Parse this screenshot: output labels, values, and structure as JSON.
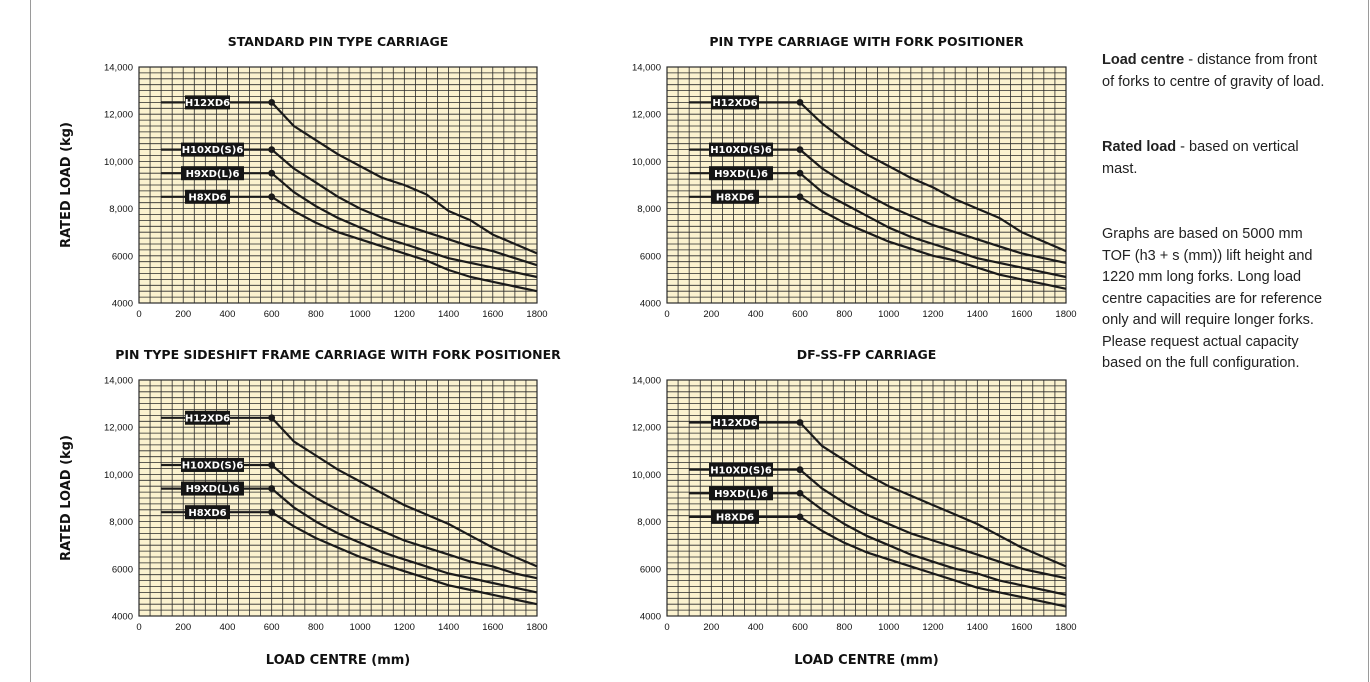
{
  "notes": {
    "load_centre_term": "Load centre",
    "load_centre_text": " - distance from front of forks to centre of gravity of load.",
    "rated_load_term": "Rated load",
    "rated_load_text": " - based on vertical mast.",
    "graphs_text": "Graphs are based on 5000 mm TOF (h3 + s (mm)) lift height and 1220 mm long forks. Long load centre capacities are for reference only and will require longer forks. Please request actual capacity based on the full configuration."
  },
  "colors": {
    "plot_background": "#fbf2cf",
    "grid": "#2a2a2a",
    "curve": "#1a1a1a",
    "label_box": "#151515"
  },
  "chart_data": [
    {
      "type": "line",
      "title": "STANDARD PIN TYPE CARRIAGE",
      "xlabel": "",
      "ylabel": "RATED LOAD (kg)",
      "xlim": [
        0,
        1800
      ],
      "ylim": [
        4000,
        14000
      ],
      "x_ticks": [
        "0",
        "200",
        "400",
        "600",
        "800",
        "1000",
        "1200",
        "1400",
        "1600",
        "1800"
      ],
      "y_ticks": [
        "4000",
        "6000",
        "8,000",
        "10,000",
        "12,000",
        "14,000"
      ],
      "grid": true,
      "series": [
        {
          "name": "H12XD6",
          "x": [
            100,
            600,
            700,
            800,
            900,
            1000,
            1100,
            1200,
            1300,
            1400,
            1500,
            1600,
            1700,
            1800
          ],
          "y": [
            12500,
            12500,
            11500,
            10900,
            10300,
            9800,
            9300,
            9000,
            8600,
            7900,
            7500,
            6900,
            6500,
            6100
          ]
        },
        {
          "name": "H10XD(S)6",
          "x": [
            100,
            600,
            700,
            800,
            900,
            1000,
            1100,
            1200,
            1300,
            1400,
            1500,
            1600,
            1700,
            1800
          ],
          "y": [
            10500,
            10500,
            9700,
            9100,
            8500,
            8000,
            7600,
            7300,
            7000,
            6700,
            6400,
            6200,
            5900,
            5600
          ]
        },
        {
          "name": "H9XD(L)6",
          "x": [
            100,
            600,
            700,
            800,
            900,
            1000,
            1100,
            1200,
            1300,
            1400,
            1500,
            1600,
            1700,
            1800
          ],
          "y": [
            9500,
            9500,
            8700,
            8100,
            7600,
            7200,
            6800,
            6500,
            6200,
            5900,
            5700,
            5500,
            5300,
            5100
          ]
        },
        {
          "name": "H8XD6",
          "x": [
            100,
            600,
            700,
            800,
            900,
            1000,
            1100,
            1200,
            1300,
            1400,
            1500,
            1600,
            1700,
            1800
          ],
          "y": [
            8500,
            8500,
            7900,
            7400,
            7000,
            6700,
            6400,
            6100,
            5800,
            5400,
            5100,
            4900,
            4700,
            4500
          ]
        }
      ]
    },
    {
      "type": "line",
      "title": "PIN TYPE CARRIAGE WITH FORK POSITIONER",
      "xlabel": "",
      "ylabel": "",
      "xlim": [
        0,
        1800
      ],
      "ylim": [
        4000,
        14000
      ],
      "x_ticks": [
        "0",
        "200",
        "400",
        "600",
        "800",
        "1000",
        "1200",
        "1400",
        "1600",
        "1800"
      ],
      "y_ticks": [
        "4000",
        "6000",
        "8,000",
        "10,000",
        "12,000",
        "14,000"
      ],
      "grid": true,
      "series": [
        {
          "name": "H12XD6",
          "x": [
            100,
            600,
            700,
            800,
            900,
            1000,
            1100,
            1200,
            1300,
            1400,
            1500,
            1600,
            1700,
            1800
          ],
          "y": [
            12500,
            12500,
            11600,
            10900,
            10300,
            9800,
            9300,
            8900,
            8400,
            8000,
            7600,
            7000,
            6600,
            6200
          ]
        },
        {
          "name": "H10XD(S)6",
          "x": [
            100,
            600,
            700,
            800,
            900,
            1000,
            1100,
            1200,
            1300,
            1400,
            1500,
            1600,
            1700,
            1800
          ],
          "y": [
            10500,
            10500,
            9700,
            9100,
            8600,
            8100,
            7700,
            7300,
            7000,
            6700,
            6400,
            6100,
            5900,
            5700
          ]
        },
        {
          "name": "H9XD(L)6",
          "x": [
            100,
            600,
            700,
            800,
            900,
            1000,
            1100,
            1200,
            1300,
            1400,
            1500,
            1600,
            1700,
            1800
          ],
          "y": [
            9500,
            9500,
            8700,
            8200,
            7700,
            7200,
            6800,
            6500,
            6200,
            5900,
            5700,
            5500,
            5300,
            5100
          ]
        },
        {
          "name": "H8XD6",
          "x": [
            100,
            600,
            700,
            800,
            900,
            1000,
            1100,
            1200,
            1300,
            1400,
            1500,
            1600,
            1700,
            1800
          ],
          "y": [
            8500,
            8500,
            7900,
            7400,
            7000,
            6600,
            6300,
            6000,
            5800,
            5500,
            5200,
            5000,
            4800,
            4600
          ]
        }
      ]
    },
    {
      "type": "line",
      "title": "PIN TYPE SIDESHIFT FRAME CARRIAGE WITH FORK POSITIONER",
      "xlabel": "LOAD CENTRE (mm)",
      "ylabel": "RATED LOAD (kg)",
      "xlim": [
        0,
        1800
      ],
      "ylim": [
        4000,
        14000
      ],
      "x_ticks": [
        "0",
        "200",
        "400",
        "600",
        "800",
        "1000",
        "1200",
        "1400",
        "1600",
        "1800"
      ],
      "y_ticks": [
        "4000",
        "6000",
        "8,000",
        "10,000",
        "12,000",
        "14,000"
      ],
      "grid": true,
      "series": [
        {
          "name": "H12XD6",
          "x": [
            100,
            600,
            700,
            800,
            900,
            1000,
            1100,
            1200,
            1300,
            1400,
            1500,
            1600,
            1700,
            1800
          ],
          "y": [
            12400,
            12400,
            11400,
            10800,
            10200,
            9700,
            9200,
            8700,
            8300,
            7900,
            7400,
            6900,
            6500,
            6100
          ]
        },
        {
          "name": "H10XD(S)6",
          "x": [
            100,
            600,
            700,
            800,
            900,
            1000,
            1100,
            1200,
            1300,
            1400,
            1500,
            1600,
            1700,
            1800
          ],
          "y": [
            10400,
            10400,
            9600,
            9000,
            8500,
            8000,
            7600,
            7200,
            6900,
            6600,
            6300,
            6100,
            5800,
            5600
          ]
        },
        {
          "name": "H9XD(L)6",
          "x": [
            100,
            600,
            700,
            800,
            900,
            1000,
            1100,
            1200,
            1300,
            1400,
            1500,
            1600,
            1700,
            1800
          ],
          "y": [
            9400,
            9400,
            8600,
            8000,
            7500,
            7100,
            6700,
            6400,
            6100,
            5800,
            5600,
            5400,
            5200,
            5000
          ]
        },
        {
          "name": "H8XD6",
          "x": [
            100,
            600,
            700,
            800,
            900,
            1000,
            1100,
            1200,
            1300,
            1400,
            1500,
            1600,
            1700,
            1800
          ],
          "y": [
            8400,
            8400,
            7800,
            7300,
            6900,
            6500,
            6200,
            5900,
            5600,
            5300,
            5100,
            4900,
            4700,
            4500
          ]
        }
      ]
    },
    {
      "type": "line",
      "title": "DF-SS-FP CARRIAGE",
      "xlabel": "LOAD CENTRE (mm)",
      "ylabel": "",
      "xlim": [
        0,
        1800
      ],
      "ylim": [
        4000,
        14000
      ],
      "x_ticks": [
        "0",
        "200",
        "400",
        "600",
        "800",
        "1000",
        "1200",
        "1400",
        "1600",
        "1800"
      ],
      "y_ticks": [
        "4000",
        "6000",
        "8,000",
        "10,000",
        "12,000",
        "14,000"
      ],
      "grid": true,
      "series": [
        {
          "name": "H12XD6",
          "x": [
            100,
            600,
            700,
            800,
            900,
            1000,
            1100,
            1200,
            1300,
            1400,
            1500,
            1600,
            1700,
            1800
          ],
          "y": [
            12200,
            12200,
            11200,
            10600,
            10000,
            9500,
            9100,
            8700,
            8300,
            7900,
            7400,
            6900,
            6500,
            6100
          ]
        },
        {
          "name": "H10XD(S)6",
          "x": [
            100,
            600,
            700,
            800,
            900,
            1000,
            1100,
            1200,
            1300,
            1400,
            1500,
            1600,
            1700,
            1800
          ],
          "y": [
            10200,
            10200,
            9400,
            8800,
            8300,
            7900,
            7500,
            7200,
            6900,
            6600,
            6300,
            6000,
            5800,
            5600
          ]
        },
        {
          "name": "H9XD(L)6",
          "x": [
            100,
            600,
            700,
            800,
            900,
            1000,
            1100,
            1200,
            1300,
            1400,
            1500,
            1600,
            1700,
            1800
          ],
          "y": [
            9200,
            9200,
            8500,
            7900,
            7400,
            7000,
            6600,
            6300,
            6000,
            5800,
            5500,
            5300,
            5100,
            4900
          ]
        },
        {
          "name": "H8XD6",
          "x": [
            100,
            600,
            700,
            800,
            900,
            1000,
            1100,
            1200,
            1300,
            1400,
            1500,
            1600,
            1700,
            1800
          ],
          "y": [
            8200,
            8200,
            7600,
            7100,
            6700,
            6400,
            6100,
            5800,
            5500,
            5200,
            5000,
            4800,
            4600,
            4400
          ]
        }
      ]
    }
  ]
}
